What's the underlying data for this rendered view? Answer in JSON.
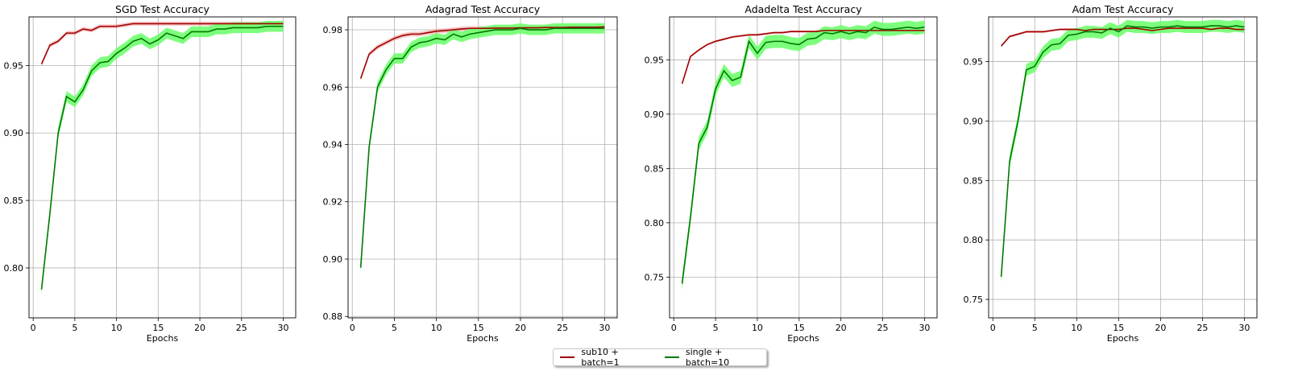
{
  "colors": {
    "sub10": "#a00000",
    "sub10_band": "#f08080",
    "single": "#007a00",
    "single_band": "#66ff66"
  },
  "legend": [
    {
      "label": "sub10 + batch=1",
      "color": "#a00000"
    },
    {
      "label": "single + batch=10",
      "color": "#007a00"
    }
  ],
  "chart_data": [
    {
      "type": "line",
      "title": "SGD Test Accuracy",
      "xlabel": "Epochs",
      "ylabel": "",
      "xlim": [
        -0.5,
        31.5
      ],
      "ylim": [
        0.763,
        0.986
      ],
      "xticks": [
        0,
        5,
        10,
        15,
        20,
        25,
        30
      ],
      "yticks": [
        0.8,
        0.85,
        0.9,
        0.95
      ],
      "grid": true,
      "x": [
        1,
        2,
        3,
        4,
        5,
        6,
        7,
        8,
        9,
        10,
        11,
        12,
        13,
        14,
        15,
        16,
        17,
        18,
        19,
        20,
        21,
        22,
        23,
        24,
        25,
        26,
        27,
        28,
        29,
        30
      ],
      "series": [
        {
          "name": "sub10 + batch=1",
          "values": [
            0.951,
            0.965,
            0.968,
            0.974,
            0.974,
            0.977,
            0.976,
            0.979,
            0.979,
            0.979,
            0.98,
            0.981,
            0.981,
            0.981,
            0.981,
            0.981,
            0.981,
            0.981,
            0.981,
            0.981,
            0.981,
            0.981,
            0.981,
            0.981,
            0.981,
            0.981,
            0.981,
            0.981,
            0.981,
            0.981
          ],
          "band": 0.0015
        },
        {
          "name": "single + batch=10",
          "values": [
            0.784,
            0.84,
            0.9,
            0.927,
            0.923,
            0.932,
            0.946,
            0.952,
            0.953,
            0.959,
            0.963,
            0.968,
            0.97,
            0.966,
            0.969,
            0.974,
            0.972,
            0.97,
            0.975,
            0.975,
            0.975,
            0.977,
            0.977,
            0.978,
            0.978,
            0.978,
            0.978,
            0.979,
            0.979,
            0.979
          ],
          "band": 0.004
        }
      ]
    },
    {
      "type": "line",
      "title": "Adagrad Test Accuracy",
      "xlabel": "Epochs",
      "ylabel": "",
      "xlim": [
        -0.5,
        31.5
      ],
      "ylim": [
        0.8795,
        0.9845
      ],
      "xticks": [
        0,
        5,
        10,
        15,
        20,
        25,
        30
      ],
      "yticks": [
        0.88,
        0.9,
        0.92,
        0.94,
        0.96,
        0.98
      ],
      "grid": true,
      "x": [
        1,
        2,
        3,
        4,
        5,
        6,
        7,
        8,
        9,
        10,
        11,
        12,
        13,
        14,
        15,
        16,
        17,
        18,
        19,
        20,
        21,
        22,
        23,
        24,
        25,
        26,
        27,
        28,
        29,
        30
      ],
      "series": [
        {
          "name": "sub10 + batch=1",
          "values": [
            0.963,
            0.9715,
            0.974,
            0.9755,
            0.977,
            0.978,
            0.9785,
            0.9785,
            0.979,
            0.9795,
            0.9797,
            0.98,
            0.9803,
            0.9805,
            0.9805,
            0.9805,
            0.9806,
            0.9806,
            0.9806,
            0.9807,
            0.9807,
            0.9807,
            0.9808,
            0.9808,
            0.9808,
            0.9809,
            0.9809,
            0.9809,
            0.9809,
            0.981
          ],
          "band": 0.0008
        },
        {
          "name": "single + batch=10",
          "values": [
            0.897,
            0.939,
            0.96,
            0.966,
            0.97,
            0.97,
            0.974,
            0.9755,
            0.976,
            0.977,
            0.9765,
            0.9785,
            0.9775,
            0.9785,
            0.979,
            0.9795,
            0.98,
            0.98,
            0.98,
            0.9805,
            0.98,
            0.98,
            0.98,
            0.9805,
            0.9805,
            0.9805,
            0.9805,
            0.9805,
            0.9805,
            0.9805
          ],
          "band": 0.0018
        }
      ]
    },
    {
      "type": "line",
      "title": "Adadelta Test Accuracy",
      "xlabel": "Epochs",
      "ylabel": "",
      "xlim": [
        -0.5,
        31.5
      ],
      "ylim": [
        0.7125,
        0.9895
      ],
      "xticks": [
        0,
        5,
        10,
        15,
        20,
        25,
        30
      ],
      "yticks": [
        0.75,
        0.8,
        0.85,
        0.9,
        0.95
      ],
      "grid": true,
      "x": [
        1,
        2,
        3,
        4,
        5,
        6,
        7,
        8,
        9,
        10,
        11,
        12,
        13,
        14,
        15,
        16,
        17,
        18,
        19,
        20,
        21,
        22,
        23,
        24,
        25,
        26,
        27,
        28,
        29,
        30
      ],
      "series": [
        {
          "name": "sub10 + batch=1",
          "values": [
            0.928,
            0.953,
            0.959,
            0.964,
            0.967,
            0.969,
            0.971,
            0.972,
            0.973,
            0.973,
            0.974,
            0.975,
            0.975,
            0.976,
            0.976,
            0.976,
            0.976,
            0.977,
            0.977,
            0.977,
            0.977,
            0.977,
            0.977,
            0.977,
            0.977,
            0.977,
            0.977,
            0.977,
            0.977,
            0.977
          ],
          "band": 0.001
        },
        {
          "name": "single + batch=10",
          "values": [
            0.744,
            0.805,
            0.873,
            0.888,
            0.923,
            0.94,
            0.931,
            0.934,
            0.967,
            0.956,
            0.966,
            0.967,
            0.967,
            0.965,
            0.964,
            0.969,
            0.97,
            0.975,
            0.974,
            0.976,
            0.974,
            0.976,
            0.975,
            0.98,
            0.978,
            0.978,
            0.979,
            0.98,
            0.979,
            0.98
          ],
          "band": 0.006
        }
      ]
    },
    {
      "type": "line",
      "title": "Adam Test Accuracy",
      "xlabel": "Epochs",
      "ylabel": "",
      "xlim": [
        -0.5,
        31.5
      ],
      "ylim": [
        0.7345,
        0.9875
      ],
      "xticks": [
        0,
        5,
        10,
        15,
        20,
        25,
        30
      ],
      "yticks": [
        0.75,
        0.8,
        0.85,
        0.9,
        0.95
      ],
      "grid": true,
      "x": [
        1,
        2,
        3,
        4,
        5,
        6,
        7,
        8,
        9,
        10,
        11,
        12,
        13,
        14,
        15,
        16,
        17,
        18,
        19,
        20,
        21,
        22,
        23,
        24,
        25,
        26,
        27,
        28,
        29,
        30
      ],
      "series": [
        {
          "name": "sub10 + batch=1",
          "values": [
            0.963,
            0.971,
            0.973,
            0.975,
            0.975,
            0.975,
            0.976,
            0.977,
            0.977,
            0.977,
            0.976,
            0.977,
            0.977,
            0.977,
            0.977,
            0.978,
            0.978,
            0.977,
            0.976,
            0.977,
            0.978,
            0.978,
            0.978,
            0.978,
            0.978,
            0.977,
            0.978,
            0.978,
            0.977,
            0.977
          ],
          "band": 0.001
        },
        {
          "name": "single + batch=10",
          "values": [
            0.769,
            0.866,
            0.9,
            0.943,
            0.946,
            0.958,
            0.964,
            0.965,
            0.972,
            0.973,
            0.975,
            0.975,
            0.974,
            0.978,
            0.975,
            0.98,
            0.979,
            0.979,
            0.978,
            0.979,
            0.979,
            0.98,
            0.979,
            0.979,
            0.979,
            0.98,
            0.98,
            0.979,
            0.98,
            0.979
          ],
          "band": 0.005
        }
      ]
    }
  ]
}
